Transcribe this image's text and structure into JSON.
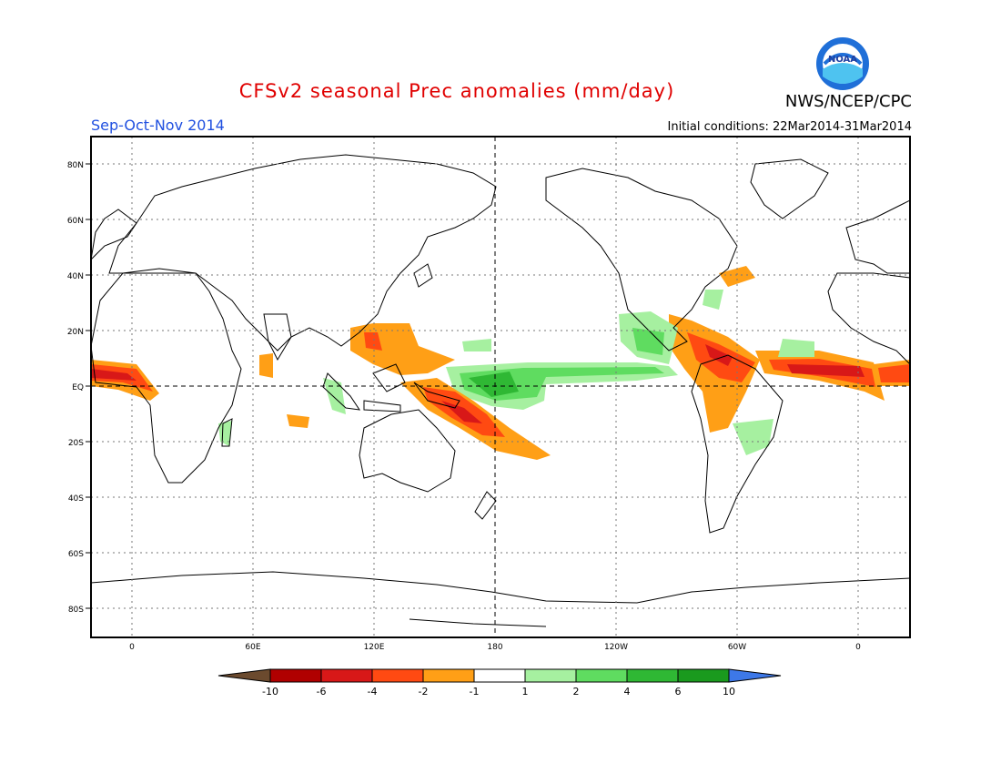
{
  "header": {
    "title": "CFSv2 seasonal Prec anomalies (mm/day)",
    "org": "NWS/NCEP/CPC",
    "season": "Sep-Oct-Nov 2014",
    "initial_conditions": "Initial conditions: 22Mar2014-31Mar2014",
    "logo_text": "NOAA",
    "title_color": "#e00000",
    "season_color": "#2050e0"
  },
  "map": {
    "lat_labels": [
      "80N",
      "60N",
      "40N",
      "20N",
      "EQ",
      "20S",
      "40S",
      "60S",
      "80S"
    ],
    "lon_labels": [
      "0",
      "60E",
      "120E",
      "180",
      "120W",
      "60W",
      "0"
    ]
  },
  "colorbar": {
    "labels": [
      "-10",
      "-6",
      "-4",
      "-2",
      "-1",
      "1",
      "2",
      "4",
      "6",
      "10"
    ],
    "colors": [
      "#6b4a2e",
      "#b00000",
      "#d81818",
      "#ff4a12",
      "#ff9f16",
      "#ffffff",
      "#a6f0a0",
      "#5fdc60",
      "#2fb834",
      "#1a9a1e",
      "#3d78e8"
    ]
  }
}
